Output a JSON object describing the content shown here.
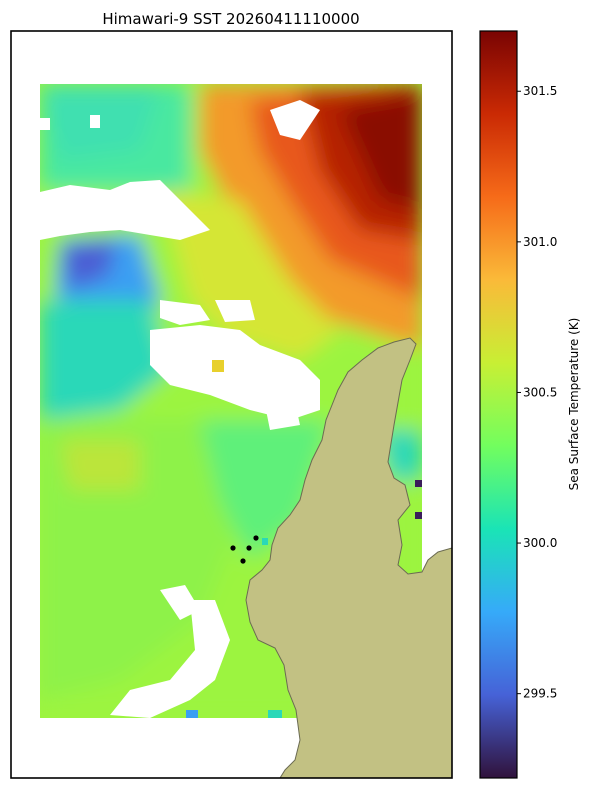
{
  "figure": {
    "title": "Himawari-9 SST 20260411110000"
  },
  "colorbar": {
    "label": "Sea Surface Temperature (K)",
    "range": [
      299.22,
      301.7
    ],
    "ticks": [
      {
        "value": 299.5,
        "label": "299.5"
      },
      {
        "value": 300.0,
        "label": "300.0"
      },
      {
        "value": 300.5,
        "label": "300.5"
      },
      {
        "value": 301.0,
        "label": "301.0"
      },
      {
        "value": 301.5,
        "label": "301.5"
      }
    ],
    "colormap": [
      "#30123b",
      "#4662d7",
      "#36aaf9",
      "#1ae4b6",
      "#72fe5e",
      "#c8ef34",
      "#faba39",
      "#f66b19",
      "#ca2a04",
      "#7a0403"
    ]
  },
  "map": {
    "land_color": "#c2c183",
    "coast_color": "#6b6b52",
    "missing_color": "#ffffff",
    "point_marker_color": "#000000"
  }
}
